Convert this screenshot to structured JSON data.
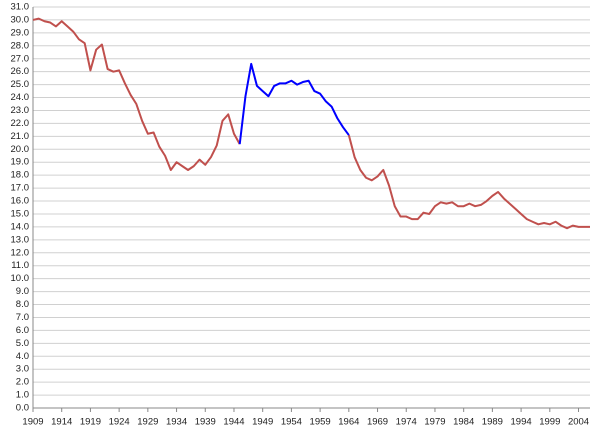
{
  "chart_data": {
    "type": "line",
    "x": [
      1909,
      1910,
      1911,
      1912,
      1913,
      1914,
      1915,
      1916,
      1917,
      1918,
      1919,
      1920,
      1921,
      1922,
      1923,
      1924,
      1925,
      1926,
      1927,
      1928,
      1929,
      1930,
      1931,
      1932,
      1933,
      1934,
      1935,
      1936,
      1937,
      1938,
      1939,
      1940,
      1941,
      1942,
      1943,
      1944,
      1945,
      1946,
      1947,
      1948,
      1949,
      1950,
      1951,
      1952,
      1953,
      1954,
      1955,
      1956,
      1957,
      1958,
      1959,
      1960,
      1961,
      1962,
      1963,
      1964,
      1965,
      1966,
      1967,
      1968,
      1969,
      1970,
      1971,
      1972,
      1973,
      1974,
      1975,
      1976,
      1977,
      1978,
      1979,
      1980,
      1981,
      1982,
      1983,
      1984,
      1985,
      1986,
      1987,
      1988,
      1989,
      1990,
      1991,
      1992,
      1993,
      1994,
      1995,
      1996,
      1997,
      1998,
      1999,
      2000,
      2001,
      2002,
      2003,
      2004,
      2005,
      2006
    ],
    "series": [
      {
        "color": "#c0504d",
        "values": [
          30.0,
          30.1,
          29.9,
          29.8,
          29.5,
          29.9,
          29.5,
          29.1,
          28.5,
          28.2,
          26.1,
          27.7,
          28.1,
          26.2,
          26.0,
          26.1,
          25.1,
          24.2,
          23.5,
          22.2,
          21.2,
          21.3,
          20.2,
          19.5,
          18.4,
          19.0,
          18.7,
          18.4,
          18.7,
          19.2,
          18.8,
          19.4,
          20.3,
          22.2,
          22.7,
          21.2,
          20.4,
          null,
          null,
          null,
          null,
          null,
          null,
          null,
          null,
          null,
          null,
          null,
          null,
          null,
          null,
          null,
          null,
          null,
          null,
          21.1,
          19.4,
          18.4,
          17.8,
          17.6,
          17.9,
          18.4,
          17.2,
          15.6,
          14.8,
          14.8,
          14.6,
          14.6,
          15.1,
          15.0,
          15.6,
          15.9,
          15.8,
          15.9,
          15.6,
          15.6,
          15.8,
          15.6,
          15.7,
          16.0,
          16.4,
          16.7,
          16.2,
          15.8,
          15.4,
          15.0,
          14.6,
          14.4,
          14.2,
          14.3,
          14.2,
          14.4,
          14.1,
          13.9,
          14.1,
          14.0,
          14.0,
          14.0
        ]
      },
      {
        "color": "#0000ff",
        "values": [
          null,
          null,
          null,
          null,
          null,
          null,
          null,
          null,
          null,
          null,
          null,
          null,
          null,
          null,
          null,
          null,
          null,
          null,
          null,
          null,
          null,
          null,
          null,
          null,
          null,
          null,
          null,
          null,
          null,
          null,
          null,
          null,
          null,
          null,
          null,
          null,
          20.4,
          24.1,
          26.6,
          24.9,
          24.5,
          24.1,
          24.9,
          25.1,
          25.1,
          25.3,
          25.0,
          25.2,
          25.3,
          24.5,
          24.3,
          23.7,
          23.3,
          22.4,
          21.7,
          21.1,
          null,
          null,
          null,
          null,
          null,
          null,
          null,
          null,
          null,
          null,
          null,
          null,
          null,
          null,
          null,
          null,
          null,
          null,
          null,
          null,
          null,
          null,
          null,
          null,
          null,
          null,
          null,
          null,
          null,
          null,
          null,
          null,
          null,
          null,
          null,
          null,
          null,
          null,
          null,
          null,
          null,
          null
        ]
      }
    ],
    "xlim": [
      1909,
      2006
    ],
    "xticks": [
      1909,
      1914,
      1919,
      1924,
      1929,
      1934,
      1939,
      1944,
      1949,
      1954,
      1959,
      1964,
      1969,
      1974,
      1979,
      1984,
      1989,
      1994,
      1999,
      2004
    ],
    "ylim": [
      0,
      31
    ],
    "yticks": [
      {
        "value": 0,
        "label": "0.0"
      },
      {
        "value": 1,
        "label": "1.0"
      },
      {
        "value": 2,
        "label": "2.0"
      },
      {
        "value": 3,
        "label": "3.0"
      },
      {
        "value": 4,
        "label": "4.0"
      },
      {
        "value": 5,
        "label": "5.0"
      },
      {
        "value": 6,
        "label": "6.0"
      },
      {
        "value": 7,
        "label": "7.0"
      },
      {
        "value": 8,
        "label": "8.0"
      },
      {
        "value": 9,
        "label": "9.0"
      },
      {
        "value": 10,
        "label": "10.0"
      },
      {
        "value": 11,
        "label": "11.0"
      },
      {
        "value": 12,
        "label": "12.0"
      },
      {
        "value": 13,
        "label": "13.0"
      },
      {
        "value": 14,
        "label": "14.0"
      },
      {
        "value": 15,
        "label": "15.0"
      },
      {
        "value": 16,
        "label": "16.0"
      },
      {
        "value": 17,
        "label": "17.0"
      },
      {
        "value": 18,
        "label": "18.0"
      },
      {
        "value": 19,
        "label": "19.0"
      },
      {
        "value": 20,
        "label": "20.0"
      },
      {
        "value": 21,
        "label": "21.0"
      },
      {
        "value": 22,
        "label": "22.0"
      },
      {
        "value": 23,
        "label": "23.0"
      },
      {
        "value": 24,
        "label": "24.0"
      },
      {
        "value": 25,
        "label": "25.0"
      },
      {
        "value": 26,
        "label": "26.0"
      },
      {
        "value": 27,
        "label": "27.0"
      },
      {
        "value": 28,
        "label": "28.0"
      },
      {
        "value": 29,
        "label": "29.0"
      },
      {
        "value": 30,
        "label": "30.0"
      },
      {
        "value": 31,
        "label": "31.0"
      }
    ],
    "grid": true
  }
}
